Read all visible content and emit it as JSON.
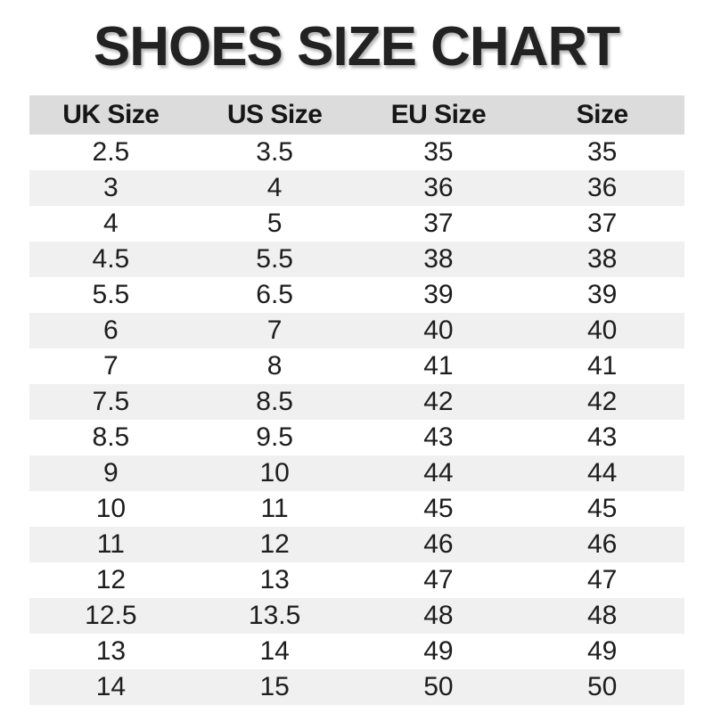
{
  "title": "SHOES SIZE CHART",
  "colors": {
    "page_bg": "#ffffff",
    "header_row_bg": "#dcdcdc",
    "alt_row_bg": "#f0f0f0",
    "row_bg": "#ffffff",
    "text": "#1d1d1d",
    "title_text": "#222222"
  },
  "chart_data": {
    "type": "table",
    "title": "SHOES SIZE CHART",
    "columns": [
      "UK Size",
      "US Size",
      "EU Size",
      "Size"
    ],
    "rows": [
      [
        "2.5",
        "3.5",
        "35",
        "35"
      ],
      [
        "3",
        "4",
        "36",
        "36"
      ],
      [
        "4",
        "5",
        "37",
        "37"
      ],
      [
        "4.5",
        "5.5",
        "38",
        "38"
      ],
      [
        "5.5",
        "6.5",
        "39",
        "39"
      ],
      [
        "6",
        "7",
        "40",
        "40"
      ],
      [
        "7",
        "8",
        "41",
        "41"
      ],
      [
        "7.5",
        "8.5",
        "42",
        "42"
      ],
      [
        "8.5",
        "9.5",
        "43",
        "43"
      ],
      [
        "9",
        "10",
        "44",
        "44"
      ],
      [
        "10",
        "11",
        "45",
        "45"
      ],
      [
        "11",
        "12",
        "46",
        "46"
      ],
      [
        "12",
        "13",
        "47",
        "47"
      ],
      [
        "12.5",
        "13.5",
        "48",
        "48"
      ],
      [
        "13",
        "14",
        "49",
        "49"
      ],
      [
        "14",
        "15",
        "50",
        "50"
      ]
    ],
    "layout": {
      "header_background": "#dcdcdc",
      "zebra_striping": true,
      "first_data_row_background": "#ffffff",
      "alternate_row_background": "#f0f0f0",
      "grid": false,
      "alignment": "center"
    }
  }
}
